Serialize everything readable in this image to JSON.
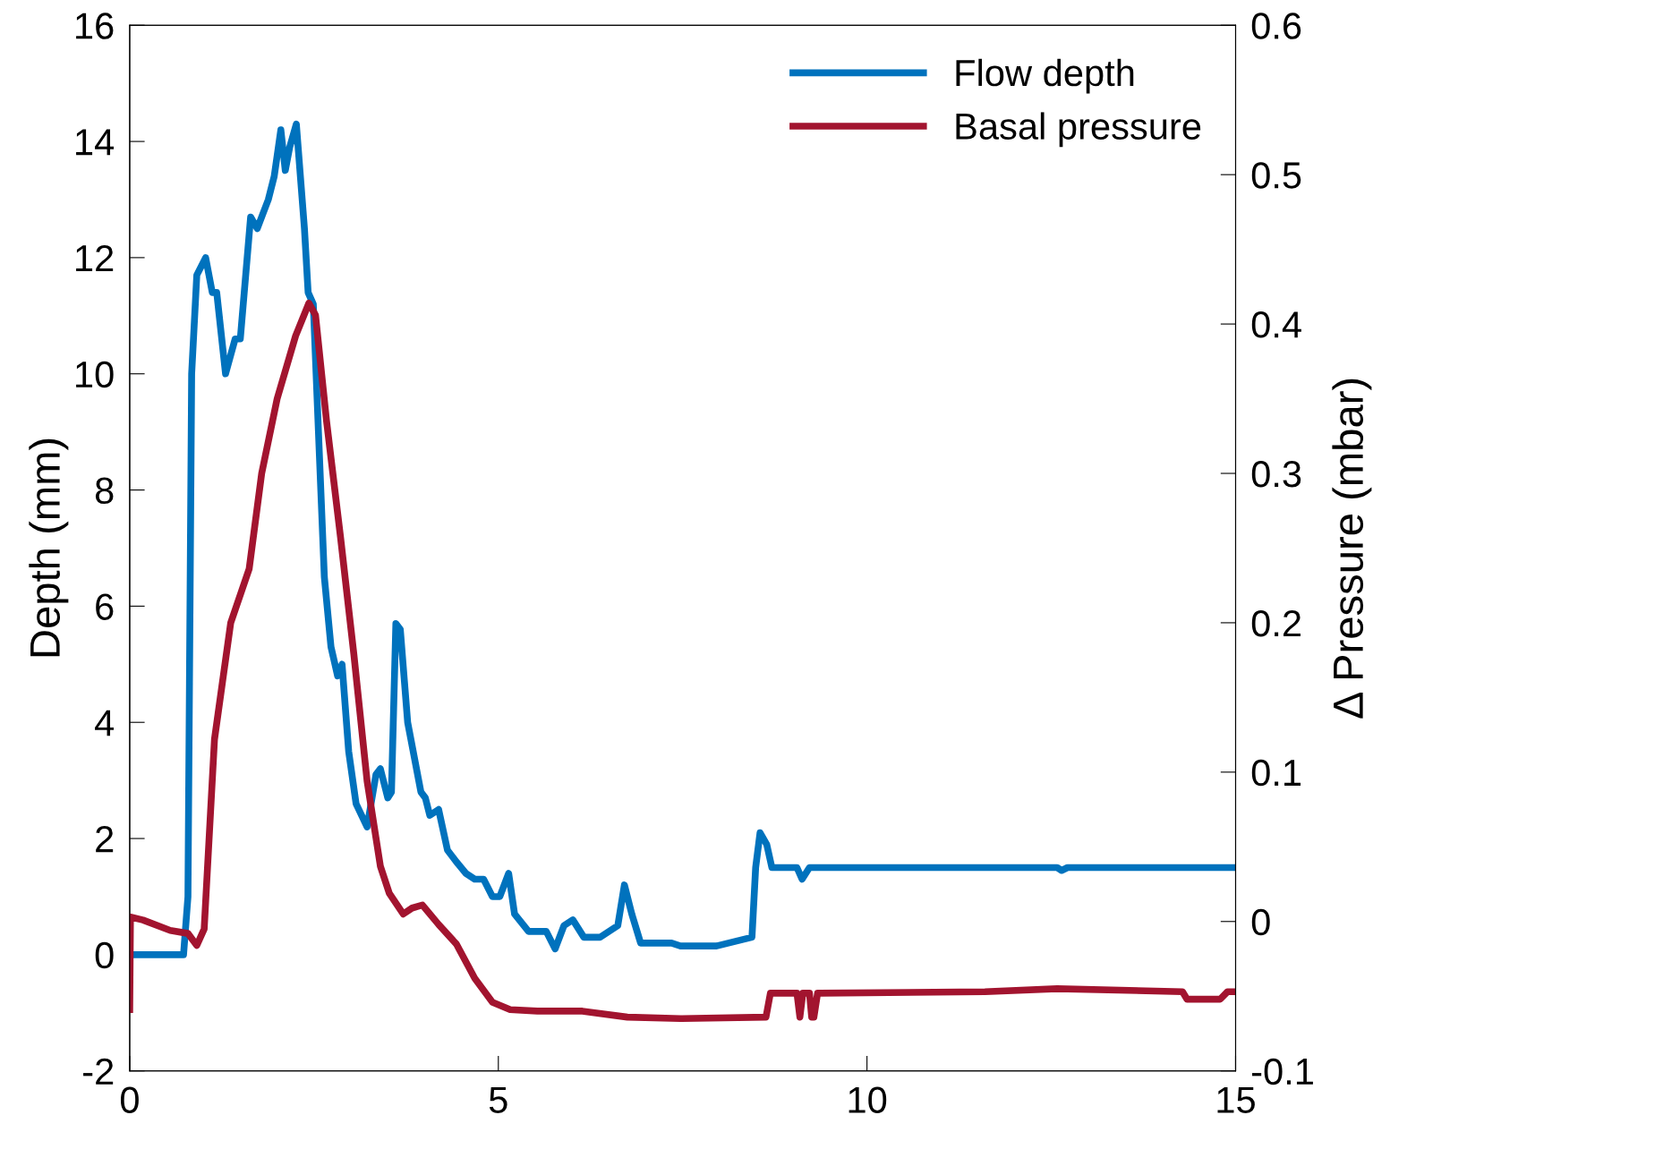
{
  "chart_data": {
    "type": "line",
    "ylabel": "Depth (mm)",
    "y2label": "Δ Pressure (mbar)",
    "xlim": [
      0,
      15
    ],
    "xticks": [
      0,
      5,
      10,
      15
    ],
    "ylim": [
      -2,
      16
    ],
    "yticks": [
      -2,
      0,
      2,
      4,
      6,
      8,
      10,
      12,
      14,
      16
    ],
    "y2lim": [
      -0.1,
      0.6
    ],
    "y2ticks": [
      -0.1,
      0,
      0.1,
      0.2,
      0.3,
      0.4,
      0.5,
      0.6
    ],
    "legend": "top right",
    "grid": false,
    "marker": "none",
    "line_style": "solid",
    "series": [
      {
        "name": "Flow depth",
        "color": "#0072bd",
        "x": [
          0,
          0.73,
          0.79,
          0.84,
          0.91,
          1.03,
          1.12,
          1.18,
          1.3,
          1.43,
          1.5,
          1.64,
          1.73,
          1.88,
          1.96,
          2.05,
          2.11,
          2.17,
          2.26,
          2.37,
          2.42,
          2.49,
          2.56,
          2.64,
          2.73,
          2.82,
          2.88,
          2.97,
          3.07,
          3.22,
          3.34,
          3.4,
          3.5,
          3.55,
          3.61,
          3.67,
          3.77,
          3.95,
          4.01,
          4.07,
          4.19,
          4.31,
          4.43,
          4.56,
          4.68,
          4.8,
          4.92,
          5.02,
          5.14,
          5.22,
          5.41,
          5.65,
          5.77,
          5.89,
          6.01,
          6.16,
          6.38,
          6.5,
          6.62,
          6.71,
          6.81,
          6.93,
          7.35,
          7.47,
          7.96,
          8.44,
          8.49,
          8.55,
          8.64,
          8.71,
          9.05,
          9.12,
          9.22,
          9.42,
          12.58,
          12.64,
          12.72,
          15
        ],
        "values": [
          0,
          0,
          1,
          10,
          11.7,
          12,
          11.4,
          11.4,
          10,
          10.6,
          10.6,
          12.7,
          12.5,
          13,
          13.4,
          14.2,
          13.5,
          13.9,
          14.3,
          12.5,
          11.4,
          11.2,
          9,
          6.5,
          5.3,
          4.8,
          5,
          3.5,
          2.6,
          2.2,
          3.1,
          3.2,
          2.7,
          2.8,
          5.7,
          5.6,
          4,
          2.8,
          2.7,
          2.4,
          2.5,
          1.8,
          1.6,
          1.4,
          1.3,
          1.3,
          1,
          1,
          1.4,
          0.7,
          0.4,
          0.4,
          0.1,
          0.5,
          0.6,
          0.3,
          0.3,
          0.4,
          0.5,
          1.2,
          0.7,
          0.2,
          0.2,
          0.15,
          0.15,
          0.3,
          1.5,
          2.1,
          1.9,
          1.5,
          1.5,
          1.3,
          1.5,
          1.5,
          1.5,
          1.45,
          1.5,
          1.5
        ]
      },
      {
        "name": "Basal pressure",
        "color": "#a2142f",
        "axis": "y2",
        "x": [
          0,
          0.01,
          0.18,
          0.55,
          0.79,
          0.91,
          1.01,
          1.15,
          1.37,
          1.62,
          1.79,
          2.0,
          2.25,
          2.43,
          2.52,
          2.67,
          2.86,
          3.04,
          3.22,
          3.4,
          3.52,
          3.71,
          3.83,
          3.97,
          4.19,
          4.43,
          4.68,
          4.92,
          5.16,
          5.53,
          6.14,
          6.75,
          7.47,
          8.63,
          8.69,
          9.0,
          9.05,
          9.09,
          9.13,
          9.16,
          9.22,
          9.25,
          9.28,
          9.33,
          9.37,
          11.6,
          12.58,
          14.28,
          14.34,
          14.79,
          14.89,
          15
        ],
        "values": [
          -0.059,
          0.003,
          0.001,
          -0.006,
          -0.008,
          -0.016,
          -0.005,
          0.122,
          0.2,
          0.236,
          0.3,
          0.35,
          0.392,
          0.414,
          0.406,
          0.335,
          0.257,
          0.179,
          0.094,
          0.037,
          0.019,
          0.005,
          0.009,
          0.011,
          -0.002,
          -0.015,
          -0.038,
          -0.054,
          -0.059,
          -0.06,
          -0.06,
          -0.064,
          -0.065,
          -0.064,
          -0.048,
          -0.048,
          -0.048,
          -0.064,
          -0.048,
          -0.048,
          -0.048,
          -0.064,
          -0.064,
          -0.048,
          -0.048,
          -0.047,
          -0.045,
          -0.047,
          -0.052,
          -0.052,
          -0.047,
          -0.047
        ]
      }
    ]
  }
}
